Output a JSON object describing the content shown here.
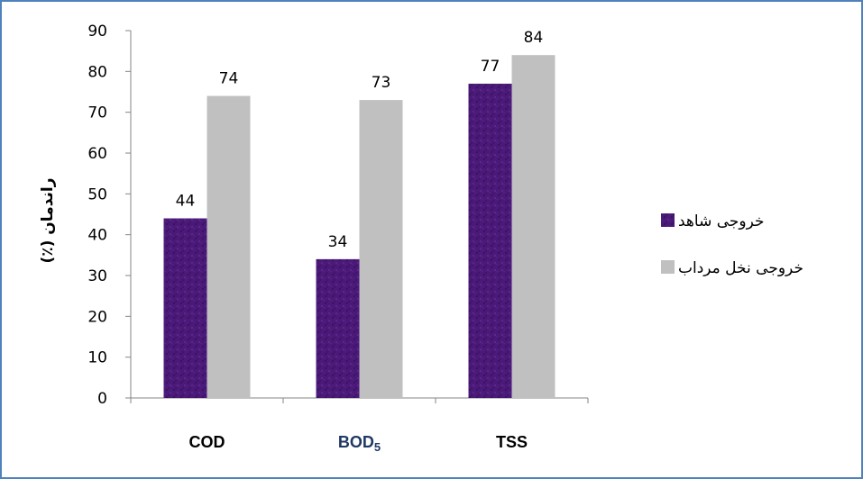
{
  "chart_data": {
    "type": "bar",
    "categories": [
      "COD",
      "BOD",
      "TSS"
    ],
    "category_subscripts": [
      "",
      "5",
      ""
    ],
    "series": [
      {
        "name": "خروجی شاهد",
        "color": "#4b1a78",
        "values": [
          44,
          34,
          77
        ]
      },
      {
        "name": "خروجی نخل مرداب",
        "color": "#c0c0c0",
        "values": [
          74,
          73,
          84
        ]
      }
    ],
    "ylabel": "راندمان (٪)",
    "ylim": [
      0,
      90
    ],
    "yticks": [
      0,
      10,
      20,
      30,
      40,
      50,
      60,
      70,
      80,
      90
    ],
    "grid": false,
    "legend_position": "right"
  }
}
